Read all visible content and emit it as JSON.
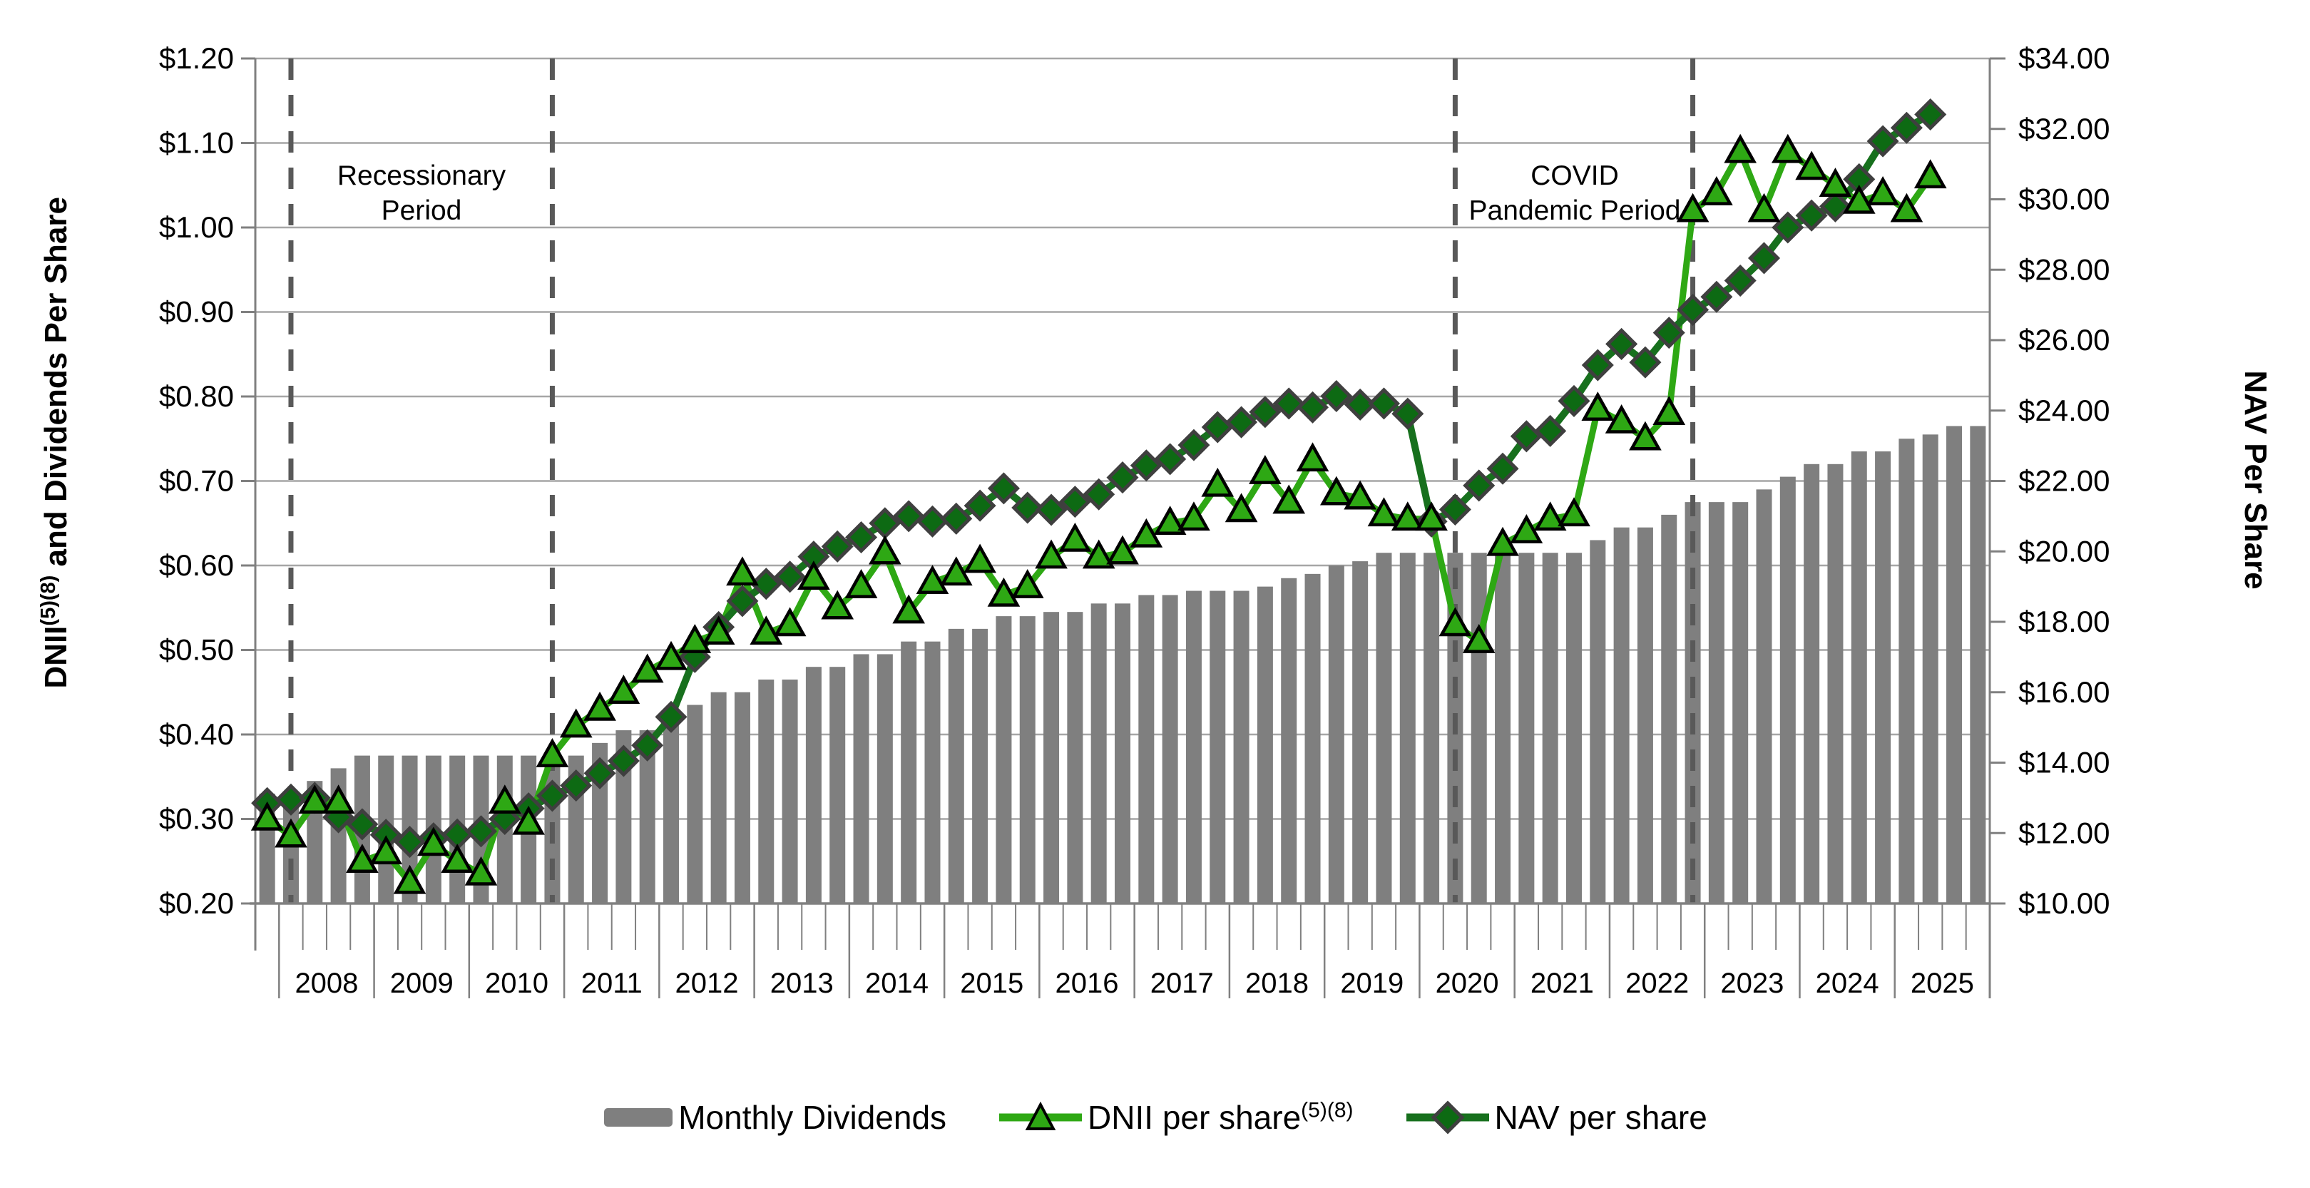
{
  "chart_data": {
    "type": "combo-bar-line",
    "title": "",
    "left_axis": {
      "title_main": "DNII",
      "title_sup": "(5)(8)",
      "title_rest": " and Dividends Per Share",
      "min": 0.2,
      "max": 1.2,
      "step": 0.1,
      "tick_labels": [
        "$0.20",
        "$0.30",
        "$0.40",
        "$0.50",
        "$0.60",
        "$0.70",
        "$0.80",
        "$0.90",
        "$1.00",
        "$1.10",
        "$1.20"
      ]
    },
    "right_axis": {
      "title": "NAV Per Share",
      "min": 10,
      "max": 34,
      "step": 2,
      "tick_labels": [
        "$10.00",
        "$12.00",
        "$14.00",
        "$16.00",
        "$18.00",
        "$20.00",
        "$22.00",
        "$24.00",
        "$26.00",
        "$28.00",
        "$30.00",
        "$32.00",
        "$34.00"
      ]
    },
    "grid": "horizontal",
    "colors": {
      "bar": "#7f7f7f",
      "dnii_line": "#2ea814",
      "dnii_fill": "#2ea814",
      "dnii_border": "#000000",
      "nav_line": "#17701d",
      "nav_fill": "#0d6a13",
      "nav_border": "#3f3f3f",
      "grid": "#a6a6a6",
      "axis": "#808080",
      "dash": "#595959",
      "text": "#000000"
    },
    "categories": [
      "2007 Q4",
      "2008 Q1",
      "2008 Q2",
      "2008 Q3",
      "2008 Q4",
      "2009 Q1",
      "2009 Q2",
      "2009 Q3",
      "2009 Q4",
      "2010 Q1",
      "2010 Q2",
      "2010 Q3",
      "2010 Q4",
      "2011 Q1",
      "2011 Q2",
      "2011 Q3",
      "2011 Q4",
      "2012 Q1",
      "2012 Q2",
      "2012 Q3",
      "2012 Q4",
      "2013 Q1",
      "2013 Q2",
      "2013 Q3",
      "2013 Q4",
      "2014 Q1",
      "2014 Q2",
      "2014 Q3",
      "2014 Q4",
      "2015 Q1",
      "2015 Q2",
      "2015 Q3",
      "2015 Q4",
      "2016 Q1",
      "2016 Q2",
      "2016 Q3",
      "2016 Q4",
      "2017 Q1",
      "2017 Q2",
      "2017 Q3",
      "2017 Q4",
      "2018 Q1",
      "2018 Q2",
      "2018 Q3",
      "2018 Q4",
      "2019 Q1",
      "2019 Q2",
      "2019 Q3",
      "2019 Q4",
      "2020 Q1",
      "2020 Q2",
      "2020 Q3",
      "2020 Q4",
      "2021 Q1",
      "2021 Q2",
      "2021 Q3",
      "2021 Q4",
      "2022 Q1",
      "2022 Q2",
      "2022 Q3",
      "2022 Q4",
      "2023 Q1",
      "2023 Q2",
      "2023 Q3",
      "2023 Q4",
      "2024 Q1",
      "2024 Q2",
      "2024 Q3",
      "2024 Q4",
      "2025 Q1",
      "2025 Q2",
      "2025 Q3",
      "2025 Q4"
    ],
    "year_labels": [
      "2008",
      "2009",
      "2010",
      "2011",
      "2012",
      "2013",
      "2014",
      "2015",
      "2016",
      "2017",
      "2018",
      "2019",
      "2020",
      "2021",
      "2022",
      "2023",
      "2024",
      "2025"
    ],
    "series": [
      {
        "name": "Monthly Dividends",
        "type": "bar",
        "axis": "left",
        "values": [
          0.33,
          0.33,
          0.345,
          0.36,
          0.375,
          0.375,
          0.375,
          0.375,
          0.375,
          0.375,
          0.375,
          0.375,
          0.375,
          0.375,
          0.39,
          0.405,
          0.405,
          0.42,
          0.435,
          0.45,
          0.45,
          0.465,
          0.465,
          0.48,
          0.48,
          0.495,
          0.495,
          0.51,
          0.51,
          0.525,
          0.525,
          0.54,
          0.54,
          0.545,
          0.545,
          0.555,
          0.555,
          0.565,
          0.565,
          0.57,
          0.57,
          0.57,
          0.575,
          0.585,
          0.59,
          0.6,
          0.605,
          0.615,
          0.615,
          0.615,
          0.615,
          0.615,
          0.615,
          0.615,
          0.615,
          0.615,
          0.63,
          0.645,
          0.645,
          0.66,
          0.675,
          0.675,
          0.675,
          0.69,
          0.705,
          0.72,
          0.72,
          0.735,
          0.735,
          0.75,
          0.755,
          0.765,
          0.765
        ]
      },
      {
        "name": "DNII per share",
        "name_sup": "(5)(8)",
        "type": "line",
        "marker": "triangle",
        "axis": "left",
        "values": [
          0.3,
          0.28,
          0.32,
          0.32,
          0.25,
          0.26,
          0.225,
          0.27,
          0.25,
          0.235,
          0.32,
          0.295,
          0.375,
          0.41,
          0.43,
          0.45,
          0.475,
          0.49,
          0.51,
          0.52,
          0.59,
          0.52,
          0.53,
          0.585,
          0.55,
          0.575,
          0.615,
          0.545,
          0.58,
          0.59,
          0.605,
          0.565,
          0.575,
          0.61,
          0.63,
          0.61,
          0.615,
          0.635,
          0.65,
          0.655,
          0.695,
          0.665,
          0.71,
          0.675,
          0.725,
          0.685,
          0.68,
          0.66,
          0.655,
          0.655,
          0.53,
          0.51,
          0.625,
          0.64,
          0.655,
          0.66,
          0.785,
          0.77,
          0.75,
          0.78,
          1.02,
          1.04,
          1.09,
          1.02,
          1.09,
          1.07,
          1.05,
          1.03,
          1.04,
          1.02,
          1.06,
          null,
          null
        ]
      },
      {
        "name": "NAV per share",
        "type": "line",
        "marker": "diamond",
        "axis": "right",
        "values": [
          12.85,
          12.95,
          13.0,
          12.45,
          12.25,
          11.95,
          11.75,
          11.85,
          11.96,
          12.05,
          12.4,
          12.7,
          13.06,
          13.35,
          13.7,
          14.05,
          14.49,
          15.3,
          17.0,
          17.85,
          18.59,
          19.08,
          19.28,
          19.85,
          20.14,
          20.4,
          20.8,
          21.0,
          20.85,
          20.93,
          21.3,
          21.79,
          21.24,
          21.18,
          21.41,
          21.62,
          22.1,
          22.44,
          22.62,
          23.02,
          23.53,
          23.67,
          23.96,
          24.2,
          24.09,
          24.41,
          24.17,
          24.2,
          23.91,
          20.85,
          21.19,
          21.87,
          22.35,
          23.27,
          23.42,
          24.27,
          25.29,
          25.89,
          25.37,
          26.21,
          26.86,
          27.23,
          27.69,
          28.33,
          29.2,
          29.54,
          29.8,
          30.57,
          31.65,
          32.03,
          32.41,
          null,
          null
        ]
      }
    ],
    "dashed_lines_at": [
      "2008 Q1",
      "2010 Q4",
      "2020 Q2",
      "2022 Q4"
    ],
    "annotations": [
      {
        "line1": "Recessionary",
        "line2": "Period",
        "between": [
          "2008 Q1",
          "2010 Q4"
        ]
      },
      {
        "line1": "COVID",
        "line2": "Pandemic Period",
        "between": [
          "2020 Q2",
          "2022 Q4"
        ]
      }
    ]
  },
  "legend": {
    "dividends_label": "Monthly Dividends",
    "dnii_label": "DNII per share",
    "dnii_sup": "(5)(8)",
    "nav_label": "NAV per share"
  },
  "annotations": {
    "recession_line1": "Recessionary",
    "recession_line2": "Period",
    "covid_line1": "COVID",
    "covid_line2": "Pandemic Period"
  },
  "axes": {
    "left_title_main": "DNII",
    "left_title_sup": "(5)(8)",
    "left_title_rest": " and Dividends Per Share",
    "right_title": "NAV Per Share"
  }
}
